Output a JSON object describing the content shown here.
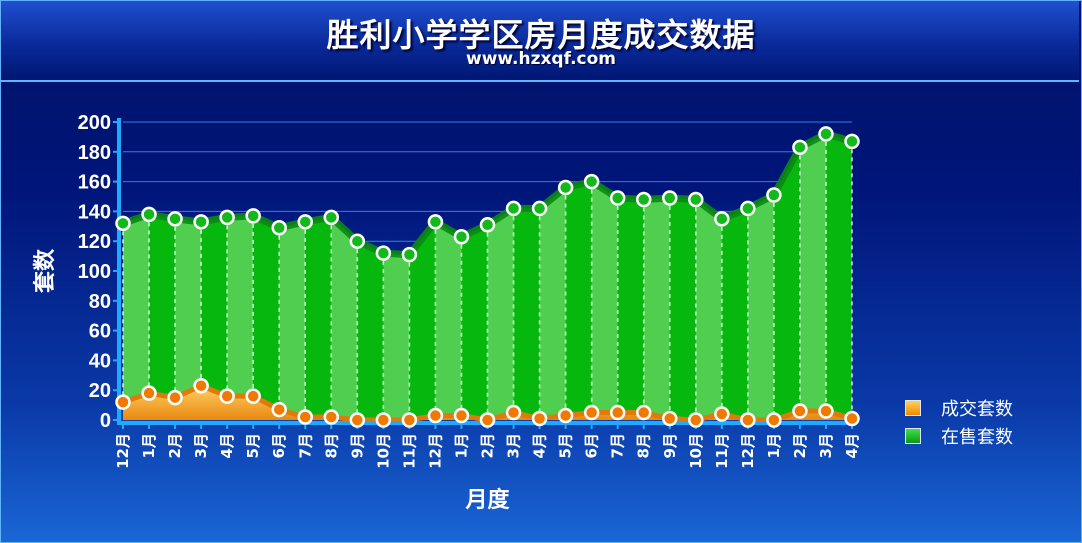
{
  "title": "胜利小学学区房月度成交数据",
  "subtitle": "www.hzxqf.com",
  "colors": {
    "background": "#00106e",
    "sold_fill": "#f5a214",
    "sold_line": "#e07a0a",
    "sale_fill": "#12c21e",
    "sale_line": "#0a8a12",
    "grid": "#3a9bff"
  },
  "chart_data": {
    "type": "area",
    "title": "胜利小学学区房月度成交数据",
    "xlabel": "月度",
    "ylabel": "套数",
    "ylim": [
      0,
      200
    ],
    "yticks": [
      0,
      20,
      40,
      60,
      80,
      100,
      120,
      140,
      160,
      180,
      200
    ],
    "grid": true,
    "legend_position": "right",
    "categories": [
      "12月",
      "1月",
      "2月",
      "3月",
      "4月",
      "5月",
      "6月",
      "7月",
      "8月",
      "9月",
      "10月",
      "11月",
      "12月",
      "1月",
      "2月",
      "3月",
      "4月",
      "5月",
      "6月",
      "7月",
      "8月",
      "9月",
      "10月",
      "11月",
      "12月",
      "1月",
      "2月",
      "3月",
      "4月"
    ],
    "series": [
      {
        "name": "成交套数",
        "color": "#f5a214",
        "values": [
          12,
          18,
          15,
          23,
          16,
          16,
          7,
          2,
          2,
          0,
          0,
          0,
          3,
          3,
          0,
          5,
          1,
          3,
          5,
          5,
          5,
          1,
          0,
          4,
          0,
          0,
          6,
          6,
          1
        ]
      },
      {
        "name": "在售套数",
        "color": "#12c21e",
        "values": [
          132,
          138,
          135,
          133,
          136,
          137,
          129,
          133,
          136,
          120,
          112,
          111,
          133,
          123,
          131,
          142,
          142,
          156,
          160,
          149,
          148,
          149,
          148,
          135,
          142,
          151,
          183,
          192,
          187
        ]
      }
    ]
  }
}
